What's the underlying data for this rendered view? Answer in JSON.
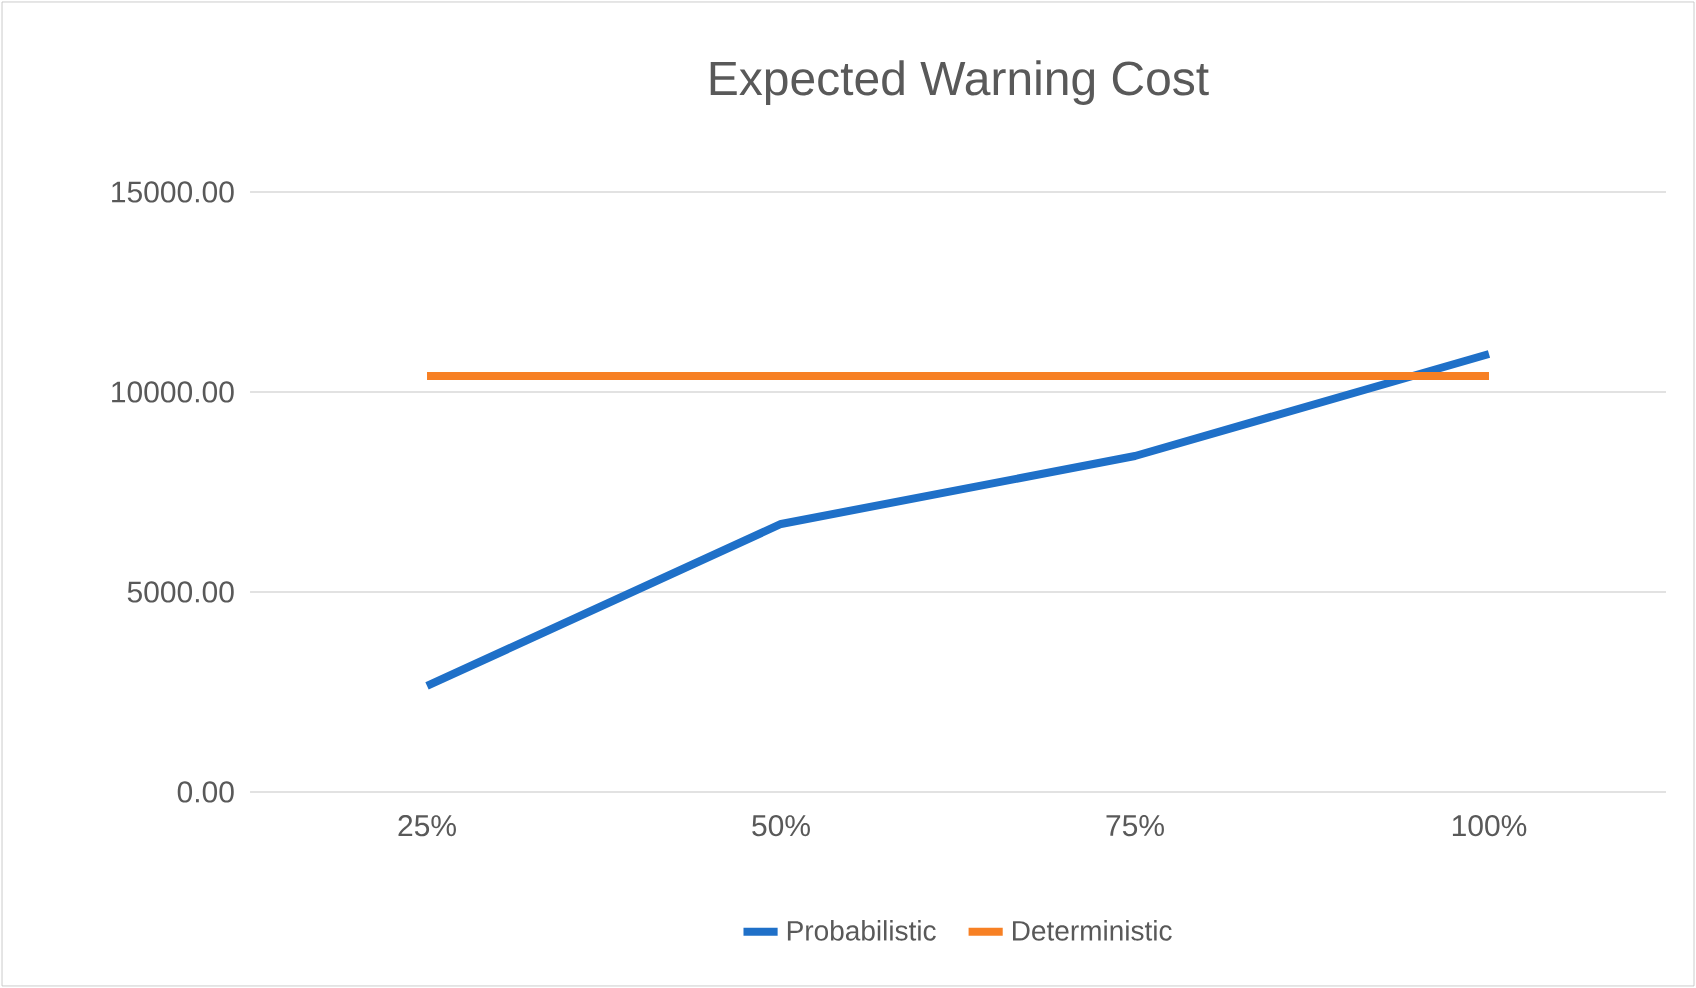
{
  "chart_data": {
    "type": "line",
    "title": "Expected Warning Cost",
    "categories": [
      "25%",
      "50%",
      "75%",
      "100%"
    ],
    "series": [
      {
        "name": "Probabilistic",
        "color": "#1f70c8",
        "values": [
          2650,
          6700,
          8400,
          10950
        ]
      },
      {
        "name": "Deterministic",
        "color": "#f78024",
        "values": [
          10400,
          10400,
          10400,
          10400
        ]
      }
    ],
    "ylim": [
      0,
      15000
    ],
    "yticks": [
      {
        "value": 0,
        "label": "0.00"
      },
      {
        "value": 5000,
        "label": "5000.00"
      },
      {
        "value": 10000,
        "label": "10000.00"
      },
      {
        "value": 15000,
        "label": "15000.00"
      }
    ],
    "grid": "y",
    "legend": "bottom",
    "marker": "none",
    "line_style": "solid"
  }
}
